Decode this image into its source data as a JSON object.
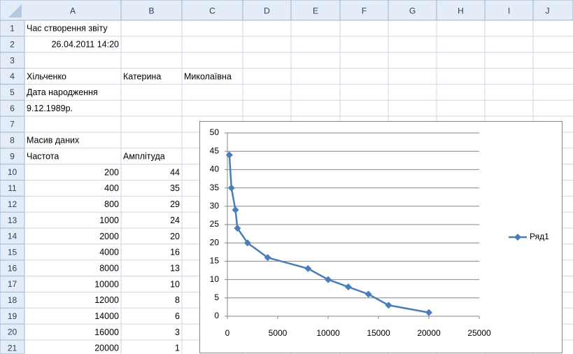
{
  "sheet": {
    "columns": [
      "A",
      "B",
      "C",
      "D",
      "E",
      "F",
      "G",
      "H",
      "I",
      "J"
    ],
    "rows": [
      {
        "number": 1,
        "A": "Час створення звіту"
      },
      {
        "number": 2,
        "A": "26.04.2011 14:20"
      },
      {
        "number": 3
      },
      {
        "number": 4,
        "A": "Хільченко",
        "B": "Катерина",
        "C": "Миколаївна"
      },
      {
        "number": 5,
        "A": "Дата народження"
      },
      {
        "number": 6,
        "A": "9.12.1989р."
      },
      {
        "number": 7
      },
      {
        "number": 8,
        "A": "Масив даних"
      },
      {
        "number": 9,
        "A": "Частота",
        "B": "Амплітуда"
      },
      {
        "number": 10,
        "A": 200,
        "B": 44
      },
      {
        "number": 11,
        "A": 400,
        "B": 35
      },
      {
        "number": 12,
        "A": 800,
        "B": 29
      },
      {
        "number": 13,
        "A": 1000,
        "B": 24
      },
      {
        "number": 14,
        "A": 2000,
        "B": 20
      },
      {
        "number": 15,
        "A": 4000,
        "B": 16
      },
      {
        "number": 16,
        "A": 8000,
        "B": 13
      },
      {
        "number": 17,
        "A": 10000,
        "B": 10
      },
      {
        "number": 18,
        "A": 12000,
        "B": 8
      },
      {
        "number": 19,
        "A": 14000,
        "B": 6
      },
      {
        "number": 20,
        "A": 16000,
        "B": 3
      },
      {
        "number": 21,
        "A": 20000,
        "B": 1
      }
    ]
  },
  "chart_data": {
    "type": "scatter-line",
    "x": [
      200,
      400,
      800,
      1000,
      2000,
      4000,
      8000,
      10000,
      12000,
      14000,
      16000,
      20000
    ],
    "series": [
      {
        "name": "Ряд1",
        "color": "#4a7ebb",
        "values": [
          44,
          35,
          29,
          24,
          20,
          16,
          13,
          10,
          8,
          6,
          3,
          1
        ]
      }
    ],
    "xlim": [
      0,
      25000
    ],
    "xticks": [
      0,
      5000,
      10000,
      15000,
      20000,
      25000
    ],
    "ylim": [
      0,
      50
    ],
    "yticks": [
      0,
      5,
      10,
      15,
      20,
      25,
      30,
      35,
      40,
      45,
      50
    ],
    "grid": true,
    "legend": "right"
  }
}
